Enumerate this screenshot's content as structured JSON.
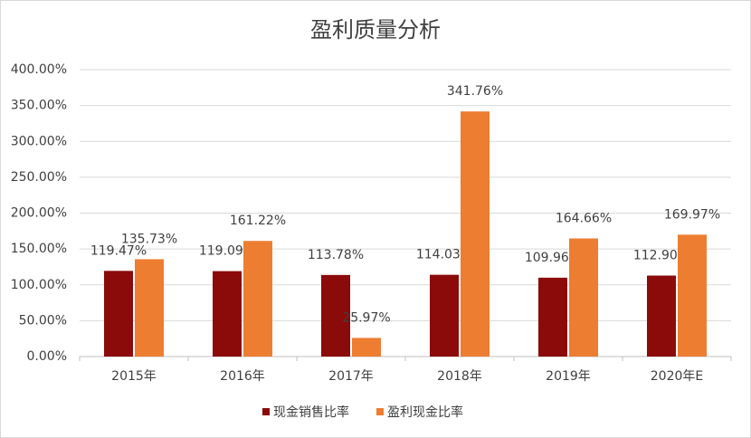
{
  "chart_data": {
    "type": "bar",
    "title": "盈利质量分析",
    "categories": [
      "2015年",
      "2016年",
      "2017年",
      "2018年",
      "2019年",
      "2020年E"
    ],
    "series": [
      {
        "name": "现金销售比率",
        "color": "#8b0a0a",
        "values": [
          119.47,
          119.09,
          113.78,
          114.03,
          109.96,
          112.9
        ],
        "value_labels": [
          "119.47%",
          "119.09%",
          "113.78%",
          "114.03%",
          "109.96%",
          "112.90%"
        ]
      },
      {
        "name": "盈利现金比率",
        "color": "#ed7d31",
        "values": [
          135.73,
          161.22,
          25.97,
          341.76,
          164.66,
          169.97
        ],
        "value_labels": [
          "135.73%",
          "161.22%",
          "25.97%",
          "341.76%",
          "164.66%",
          "169.97%"
        ]
      }
    ],
    "ylim": [
      0,
      400
    ],
    "yticks": [
      {
        "value": 0,
        "label": "0.00%"
      },
      {
        "value": 50,
        "label": "50.00%"
      },
      {
        "value": 100,
        "label": "100.00%"
      },
      {
        "value": 150,
        "label": "150.00%"
      },
      {
        "value": 200,
        "label": "200.00%"
      },
      {
        "value": 250,
        "label": "250.00%"
      },
      {
        "value": 300,
        "label": "300.00%"
      },
      {
        "value": 350,
        "label": "350.00%"
      },
      {
        "value": 400,
        "label": "400.00%"
      }
    ],
    "grid": true,
    "legend": "bottom"
  }
}
